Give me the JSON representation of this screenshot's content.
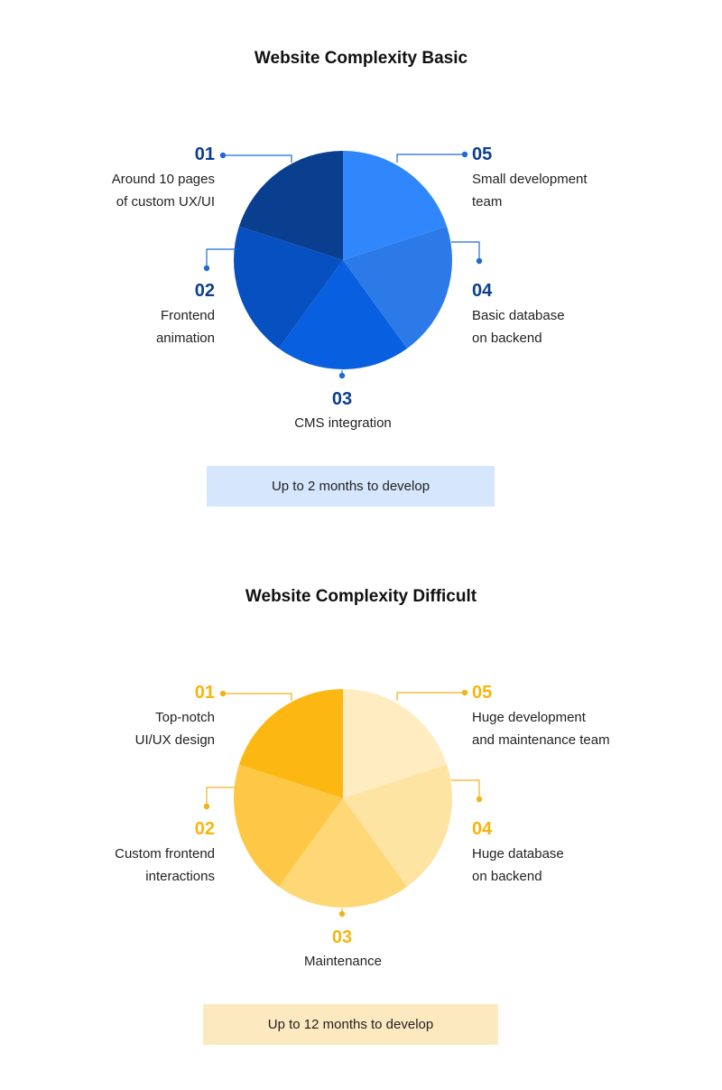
{
  "chart_data": [
    {
      "type": "pie",
      "title": "Website Complexity Basic",
      "categories": [
        "01",
        "02",
        "03",
        "04",
        "05"
      ],
      "values": [
        20,
        20,
        20,
        20,
        20
      ],
      "labels": [
        [
          "Around 10 pages",
          "of custom UX/UI"
        ],
        [
          "Frontend",
          "animation"
        ],
        [
          "CMS integration"
        ],
        [
          "Basic database",
          "on backend"
        ],
        [
          "Small development",
          "team"
        ]
      ],
      "colors": [
        "#0a3e8f",
        "#0650c1",
        "#085fdf",
        "#2b7ae8",
        "#2f87fb"
      ],
      "number_color": "#0b3f8c",
      "line_color": "#1f6ad6",
      "footer": "Up to 2 months to develop",
      "footer_bg": "#d6e6fd"
    },
    {
      "type": "pie",
      "title": "Website Complexity Difficult",
      "categories": [
        "01",
        "02",
        "03",
        "04",
        "05"
      ],
      "values": [
        20,
        20,
        20,
        20,
        20
      ],
      "labels": [
        [
          "Top-notch",
          "UI/UX design"
        ],
        [
          "Custom frontend",
          "interactions"
        ],
        [
          "Maintenance"
        ],
        [
          "Huge database",
          "on backend"
        ],
        [
          "Huge development",
          "and maintenance team"
        ]
      ],
      "colors": [
        "#fdb712",
        "#fec846",
        "#fed876",
        "#fee4a2",
        "#ffecc0"
      ],
      "number_color": "#f5b50f",
      "line_color": "#f0b31a",
      "footer": "Up to 12 months to develop",
      "footer_bg": "#fde9c0"
    }
  ]
}
